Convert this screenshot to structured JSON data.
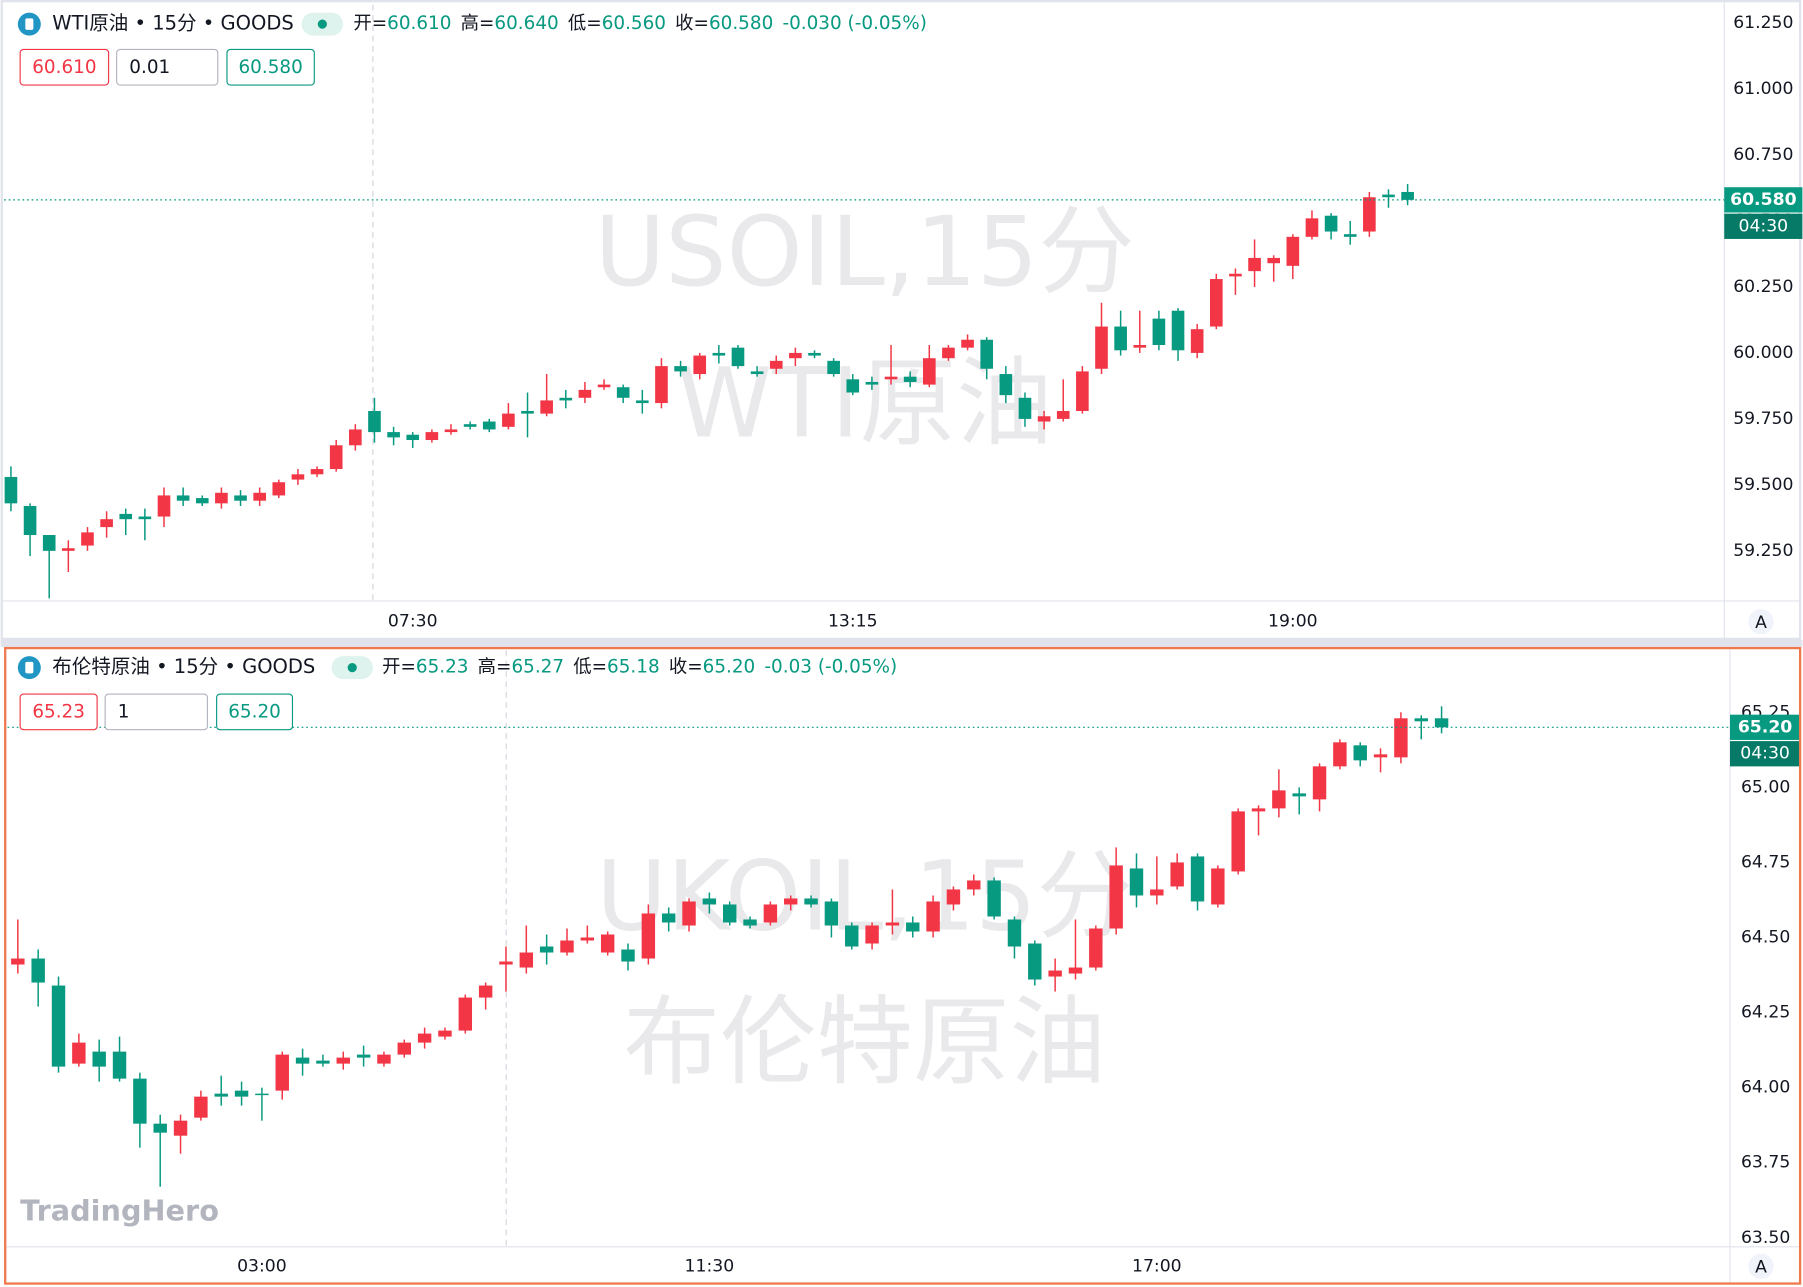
{
  "chart_data": [
    {
      "type": "candlestick",
      "title": "WTI原油 • 15分 • GOODS",
      "info": [
        {
          "label": "开=",
          "value": "60.610"
        },
        {
          "label": "高=",
          "value": "60.640"
        },
        {
          "label": "低=",
          "value": "60.560"
        },
        {
          "label": "收=",
          "value": "60.580"
        }
      ],
      "change": "-0.030 (-0.05%)",
      "order_boxes": [
        "60.610",
        "0.01",
        "60.580"
      ],
      "watermark": [
        "USOIL,15分",
        "WTI原油"
      ],
      "up_color": "#f23645",
      "down_color": "#089981",
      "grid": false,
      "open": [
        59.53,
        59.42,
        59.31,
        59.25,
        59.27,
        59.34,
        59.39,
        59.38,
        59.38,
        59.46,
        59.45,
        59.43,
        59.46,
        59.44,
        59.46,
        59.52,
        59.54,
        59.56,
        59.65,
        59.78,
        59.7,
        59.69,
        59.67,
        59.7,
        59.73,
        59.74,
        59.72,
        59.78,
        59.77,
        59.83,
        59.83,
        59.87,
        59.87,
        59.82,
        59.81,
        59.95,
        59.92,
        60.0,
        60.02,
        59.93,
        59.94,
        59.98,
        60.0,
        59.97,
        59.9,
        59.89,
        59.9,
        59.91,
        59.88,
        59.98,
        60.02,
        60.05,
        59.92,
        59.83,
        59.74,
        59.75,
        59.78,
        59.94,
        60.1,
        60.02,
        60.13,
        60.16,
        60.0,
        60.1,
        60.29,
        60.31,
        60.34,
        60.33,
        60.44,
        60.52,
        60.45,
        60.46,
        60.6,
        60.61
      ],
      "high": [
        59.57,
        59.43,
        59.31,
        59.29,
        59.34,
        59.4,
        59.41,
        59.41,
        59.49,
        59.49,
        59.46,
        59.49,
        59.48,
        59.49,
        59.52,
        59.56,
        59.57,
        59.67,
        59.73,
        59.83,
        59.72,
        59.7,
        59.71,
        59.73,
        59.74,
        59.75,
        59.81,
        59.85,
        59.92,
        59.86,
        59.89,
        59.9,
        59.88,
        59.86,
        59.98,
        59.97,
        60.0,
        60.03,
        60.03,
        59.95,
        59.99,
        60.02,
        60.01,
        59.98,
        59.92,
        59.91,
        60.03,
        59.93,
        60.03,
        60.03,
        60.07,
        60.06,
        59.95,
        59.85,
        59.78,
        59.9,
        59.95,
        60.19,
        60.16,
        60.16,
        60.16,
        60.17,
        60.11,
        60.3,
        60.32,
        60.43,
        60.37,
        60.45,
        60.54,
        60.53,
        60.5,
        60.61,
        60.62,
        60.64
      ],
      "low": [
        59.4,
        59.23,
        59.07,
        59.17,
        59.25,
        59.3,
        59.31,
        59.29,
        59.34,
        59.42,
        59.42,
        59.41,
        59.42,
        59.42,
        59.45,
        59.5,
        59.53,
        59.55,
        59.63,
        59.66,
        59.65,
        59.64,
        59.66,
        59.69,
        59.71,
        59.7,
        59.71,
        59.68,
        59.76,
        59.79,
        59.81,
        59.86,
        59.81,
        59.77,
        59.79,
        59.91,
        59.9,
        59.96,
        59.94,
        59.91,
        59.92,
        59.95,
        59.98,
        59.91,
        59.84,
        59.86,
        59.88,
        59.87,
        59.87,
        59.97,
        60.01,
        59.9,
        59.81,
        59.72,
        59.71,
        59.74,
        59.77,
        59.92,
        59.99,
        60.0,
        60.01,
        59.97,
        59.98,
        60.09,
        60.22,
        60.25,
        60.27,
        60.28,
        60.43,
        60.43,
        60.41,
        60.44,
        60.55,
        60.56
      ],
      "close": [
        59.43,
        59.31,
        59.25,
        59.26,
        59.32,
        59.37,
        59.37,
        59.37,
        59.46,
        59.44,
        59.43,
        59.47,
        59.44,
        59.47,
        59.51,
        59.54,
        59.56,
        59.65,
        59.71,
        59.7,
        59.68,
        59.67,
        59.7,
        59.71,
        59.72,
        59.71,
        59.77,
        59.77,
        59.82,
        59.82,
        59.86,
        59.88,
        59.83,
        59.81,
        59.95,
        59.93,
        59.99,
        59.99,
        59.95,
        59.92,
        59.97,
        60.0,
        59.99,
        59.92,
        59.85,
        59.88,
        59.91,
        59.89,
        59.98,
        60.02,
        60.05,
        59.94,
        59.84,
        59.75,
        59.76,
        59.78,
        59.93,
        60.1,
        60.01,
        60.03,
        60.03,
        60.01,
        60.09,
        60.28,
        60.3,
        60.36,
        60.36,
        60.44,
        60.51,
        60.46,
        60.44,
        60.59,
        60.59,
        60.58
      ],
      "xticks": [
        {
          "value": 21,
          "label": "07:30"
        },
        {
          "value": 44,
          "label": "13:15"
        },
        {
          "value": 67,
          "label": "19:00"
        }
      ],
      "ylim": [
        59.06,
        61.32
      ],
      "yticks": [
        {
          "value": 59.25,
          "label": "59.250"
        },
        {
          "value": 59.5,
          "label": "59.500"
        },
        {
          "value": 59.75,
          "label": "59.750"
        },
        {
          "value": 60.0,
          "label": "60.000"
        },
        {
          "value": 60.25,
          "label": "60.250"
        },
        {
          "value": 60.5,
          "label": "60.500"
        },
        {
          "value": 60.75,
          "label": "60.750"
        },
        {
          "value": 61.0,
          "label": "61.000"
        },
        {
          "value": 61.25,
          "label": "61.250"
        }
      ],
      "last_price_label": "60.580",
      "countdown": "04:30",
      "scale_button": "A"
    },
    {
      "type": "candlestick",
      "title": "布伦特原油 • 15分 • GOODS",
      "info": [
        {
          "label": "开=",
          "value": "65.23"
        },
        {
          "label": "高=",
          "value": "65.27"
        },
        {
          "label": "低=",
          "value": "65.18"
        },
        {
          "label": "收=",
          "value": "65.20"
        }
      ],
      "change": "-0.03 (-0.05%)",
      "order_boxes": [
        "65.23",
        "1",
        "65.20"
      ],
      "watermark": [
        "UKOIL,15分",
        "布伦特原油"
      ],
      "up_color": "#f23645",
      "down_color": "#089981",
      "grid": false,
      "open": [
        64.41,
        64.43,
        64.34,
        64.08,
        64.12,
        64.12,
        64.03,
        63.88,
        63.84,
        63.9,
        63.98,
        63.99,
        63.98,
        63.99,
        64.1,
        64.09,
        64.08,
        64.11,
        64.08,
        64.11,
        64.15,
        64.17,
        64.19,
        64.3,
        64.41,
        64.4,
        64.47,
        64.45,
        64.49,
        64.45,
        64.46,
        64.43,
        64.58,
        64.54,
        64.63,
        64.61,
        64.56,
        64.55,
        64.61,
        64.63,
        64.62,
        64.54,
        64.48,
        64.54,
        64.55,
        64.52,
        64.61,
        64.66,
        64.69,
        64.56,
        64.48,
        64.37,
        64.38,
        64.4,
        64.53,
        64.73,
        64.64,
        64.67,
        64.77,
        64.61,
        64.72,
        64.92,
        64.93,
        64.98,
        64.96,
        65.07,
        65.14,
        65.1,
        65.1,
        65.23,
        65.23
      ],
      "high": [
        64.56,
        64.46,
        64.37,
        64.18,
        64.16,
        64.17,
        64.05,
        63.91,
        63.91,
        63.99,
        64.04,
        64.02,
        64.0,
        64.12,
        64.13,
        64.11,
        64.12,
        64.14,
        64.12,
        64.16,
        64.2,
        64.2,
        64.31,
        64.35,
        64.47,
        64.54,
        64.51,
        64.53,
        64.54,
        64.52,
        64.48,
        64.61,
        64.6,
        64.63,
        64.65,
        64.62,
        64.57,
        64.62,
        64.64,
        64.64,
        64.63,
        64.55,
        64.55,
        64.66,
        64.57,
        64.64,
        64.67,
        64.71,
        64.7,
        64.57,
        64.49,
        64.43,
        64.56,
        64.54,
        64.8,
        64.78,
        64.77,
        64.78,
        64.78,
        64.74,
        64.93,
        64.94,
        65.06,
        65.0,
        65.08,
        65.16,
        65.15,
        65.13,
        65.25,
        65.24,
        65.27
      ],
      "low": [
        64.38,
        64.27,
        64.05,
        64.07,
        64.02,
        64.02,
        63.8,
        63.67,
        63.78,
        63.89,
        63.94,
        63.94,
        63.89,
        63.96,
        64.04,
        64.07,
        64.06,
        64.07,
        64.07,
        64.1,
        64.13,
        64.16,
        64.18,
        64.26,
        64.32,
        64.38,
        64.41,
        64.44,
        64.48,
        64.44,
        64.39,
        64.41,
        64.52,
        64.52,
        64.58,
        64.54,
        64.53,
        64.54,
        64.59,
        64.6,
        64.5,
        64.46,
        64.46,
        64.51,
        64.5,
        64.5,
        64.59,
        64.64,
        64.56,
        64.43,
        64.34,
        64.32,
        64.36,
        64.39,
        64.51,
        64.6,
        64.61,
        64.66,
        64.59,
        64.6,
        64.71,
        64.84,
        64.9,
        64.91,
        64.92,
        65.06,
        65.07,
        65.05,
        65.08,
        65.16,
        65.18
      ],
      "close": [
        64.43,
        64.35,
        64.07,
        64.15,
        64.07,
        64.03,
        63.88,
        63.85,
        63.89,
        63.97,
        63.97,
        63.97,
        63.98,
        64.11,
        64.08,
        64.08,
        64.1,
        64.1,
        64.11,
        64.15,
        64.18,
        64.19,
        64.3,
        64.34,
        64.42,
        64.45,
        64.45,
        64.49,
        64.5,
        64.51,
        64.42,
        64.58,
        64.55,
        64.62,
        64.61,
        64.55,
        64.54,
        64.61,
        64.63,
        64.61,
        64.54,
        64.47,
        64.54,
        64.55,
        64.52,
        64.62,
        64.66,
        64.69,
        64.57,
        64.47,
        64.36,
        64.39,
        64.4,
        64.53,
        64.74,
        64.64,
        64.66,
        64.75,
        64.62,
        64.73,
        64.92,
        64.93,
        64.99,
        64.97,
        65.07,
        65.15,
        65.09,
        65.11,
        65.23,
        65.22,
        65.2
      ],
      "xticks": [
        {
          "value": 12,
          "label": "03:00"
        },
        {
          "value": 34,
          "label": "11:30"
        },
        {
          "value": 56,
          "label": "17:00"
        }
      ],
      "ylim": [
        63.47,
        65.46
      ],
      "yticks": [
        {
          "value": 63.5,
          "label": "63.50"
        },
        63.75,
        {
          "value": 64.0,
          "label": "64.00"
        },
        64.25,
        {
          "value": 64.5,
          "label": "64.50"
        },
        64.75,
        {
          "value": 65.0,
          "label": "65.00"
        },
        65.25
      ],
      "last_price_label": "65.20",
      "countdown": "04:30",
      "scale_button": "A"
    }
  ],
  "logo": "TradingHero"
}
